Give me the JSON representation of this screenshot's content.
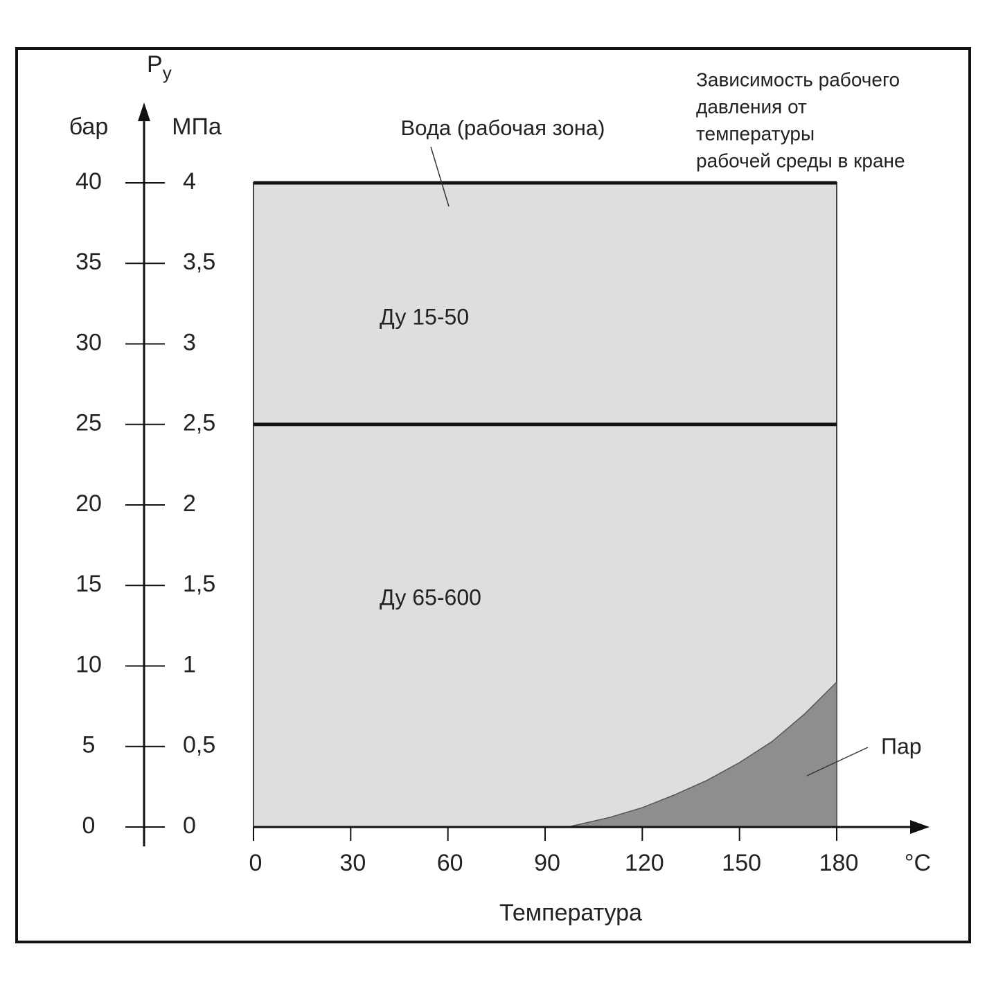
{
  "chart_data": {
    "type": "area",
    "title_lines": [
      "Зависимость рабочего",
      "давления от",
      "температуры",
      "рабочей среды в кране"
    ],
    "y_symbol": "P",
    "y_symbol_subscript": "у",
    "ylabel": "бар",
    "y2label": "МПа",
    "xlabel": "Температура",
    "xunit": "°C",
    "annotation": "Вода (рабочая зона)",
    "xlim": [
      0,
      180
    ],
    "xticks": [
      0,
      30,
      60,
      90,
      120,
      150,
      180
    ],
    "ylim": [
      0,
      40
    ],
    "yticks": [
      0,
      5,
      10,
      15,
      20,
      25,
      30,
      35,
      40
    ],
    "y2lim": [
      0,
      4
    ],
    "y2ticks": [
      0,
      {
        "value": 0.5,
        "label": "0,5"
      },
      1,
      {
        "value": 1.5,
        "label": "1,5"
      },
      2,
      {
        "value": 2.5,
        "label": "2,5"
      },
      3,
      {
        "value": 3.5,
        "label": "3,5"
      },
      4
    ],
    "series": [
      {
        "name": "Ду 15-50",
        "color": "#dcdedf",
        "x": [
          0,
          180
        ],
        "values": [
          40,
          40
        ]
      },
      {
        "name": "Ду 65-600",
        "color": "#dcdedf",
        "x": [
          0,
          180
        ],
        "values": [
          25,
          25
        ]
      },
      {
        "name": "Пар",
        "color": "#8e8e8e",
        "x": [
          97,
          110,
          120,
          130,
          140,
          150,
          160,
          170,
          180
        ],
        "values": [
          0,
          0.6,
          1.2,
          2,
          2.9,
          4,
          5.3,
          7,
          9
        ]
      }
    ]
  }
}
